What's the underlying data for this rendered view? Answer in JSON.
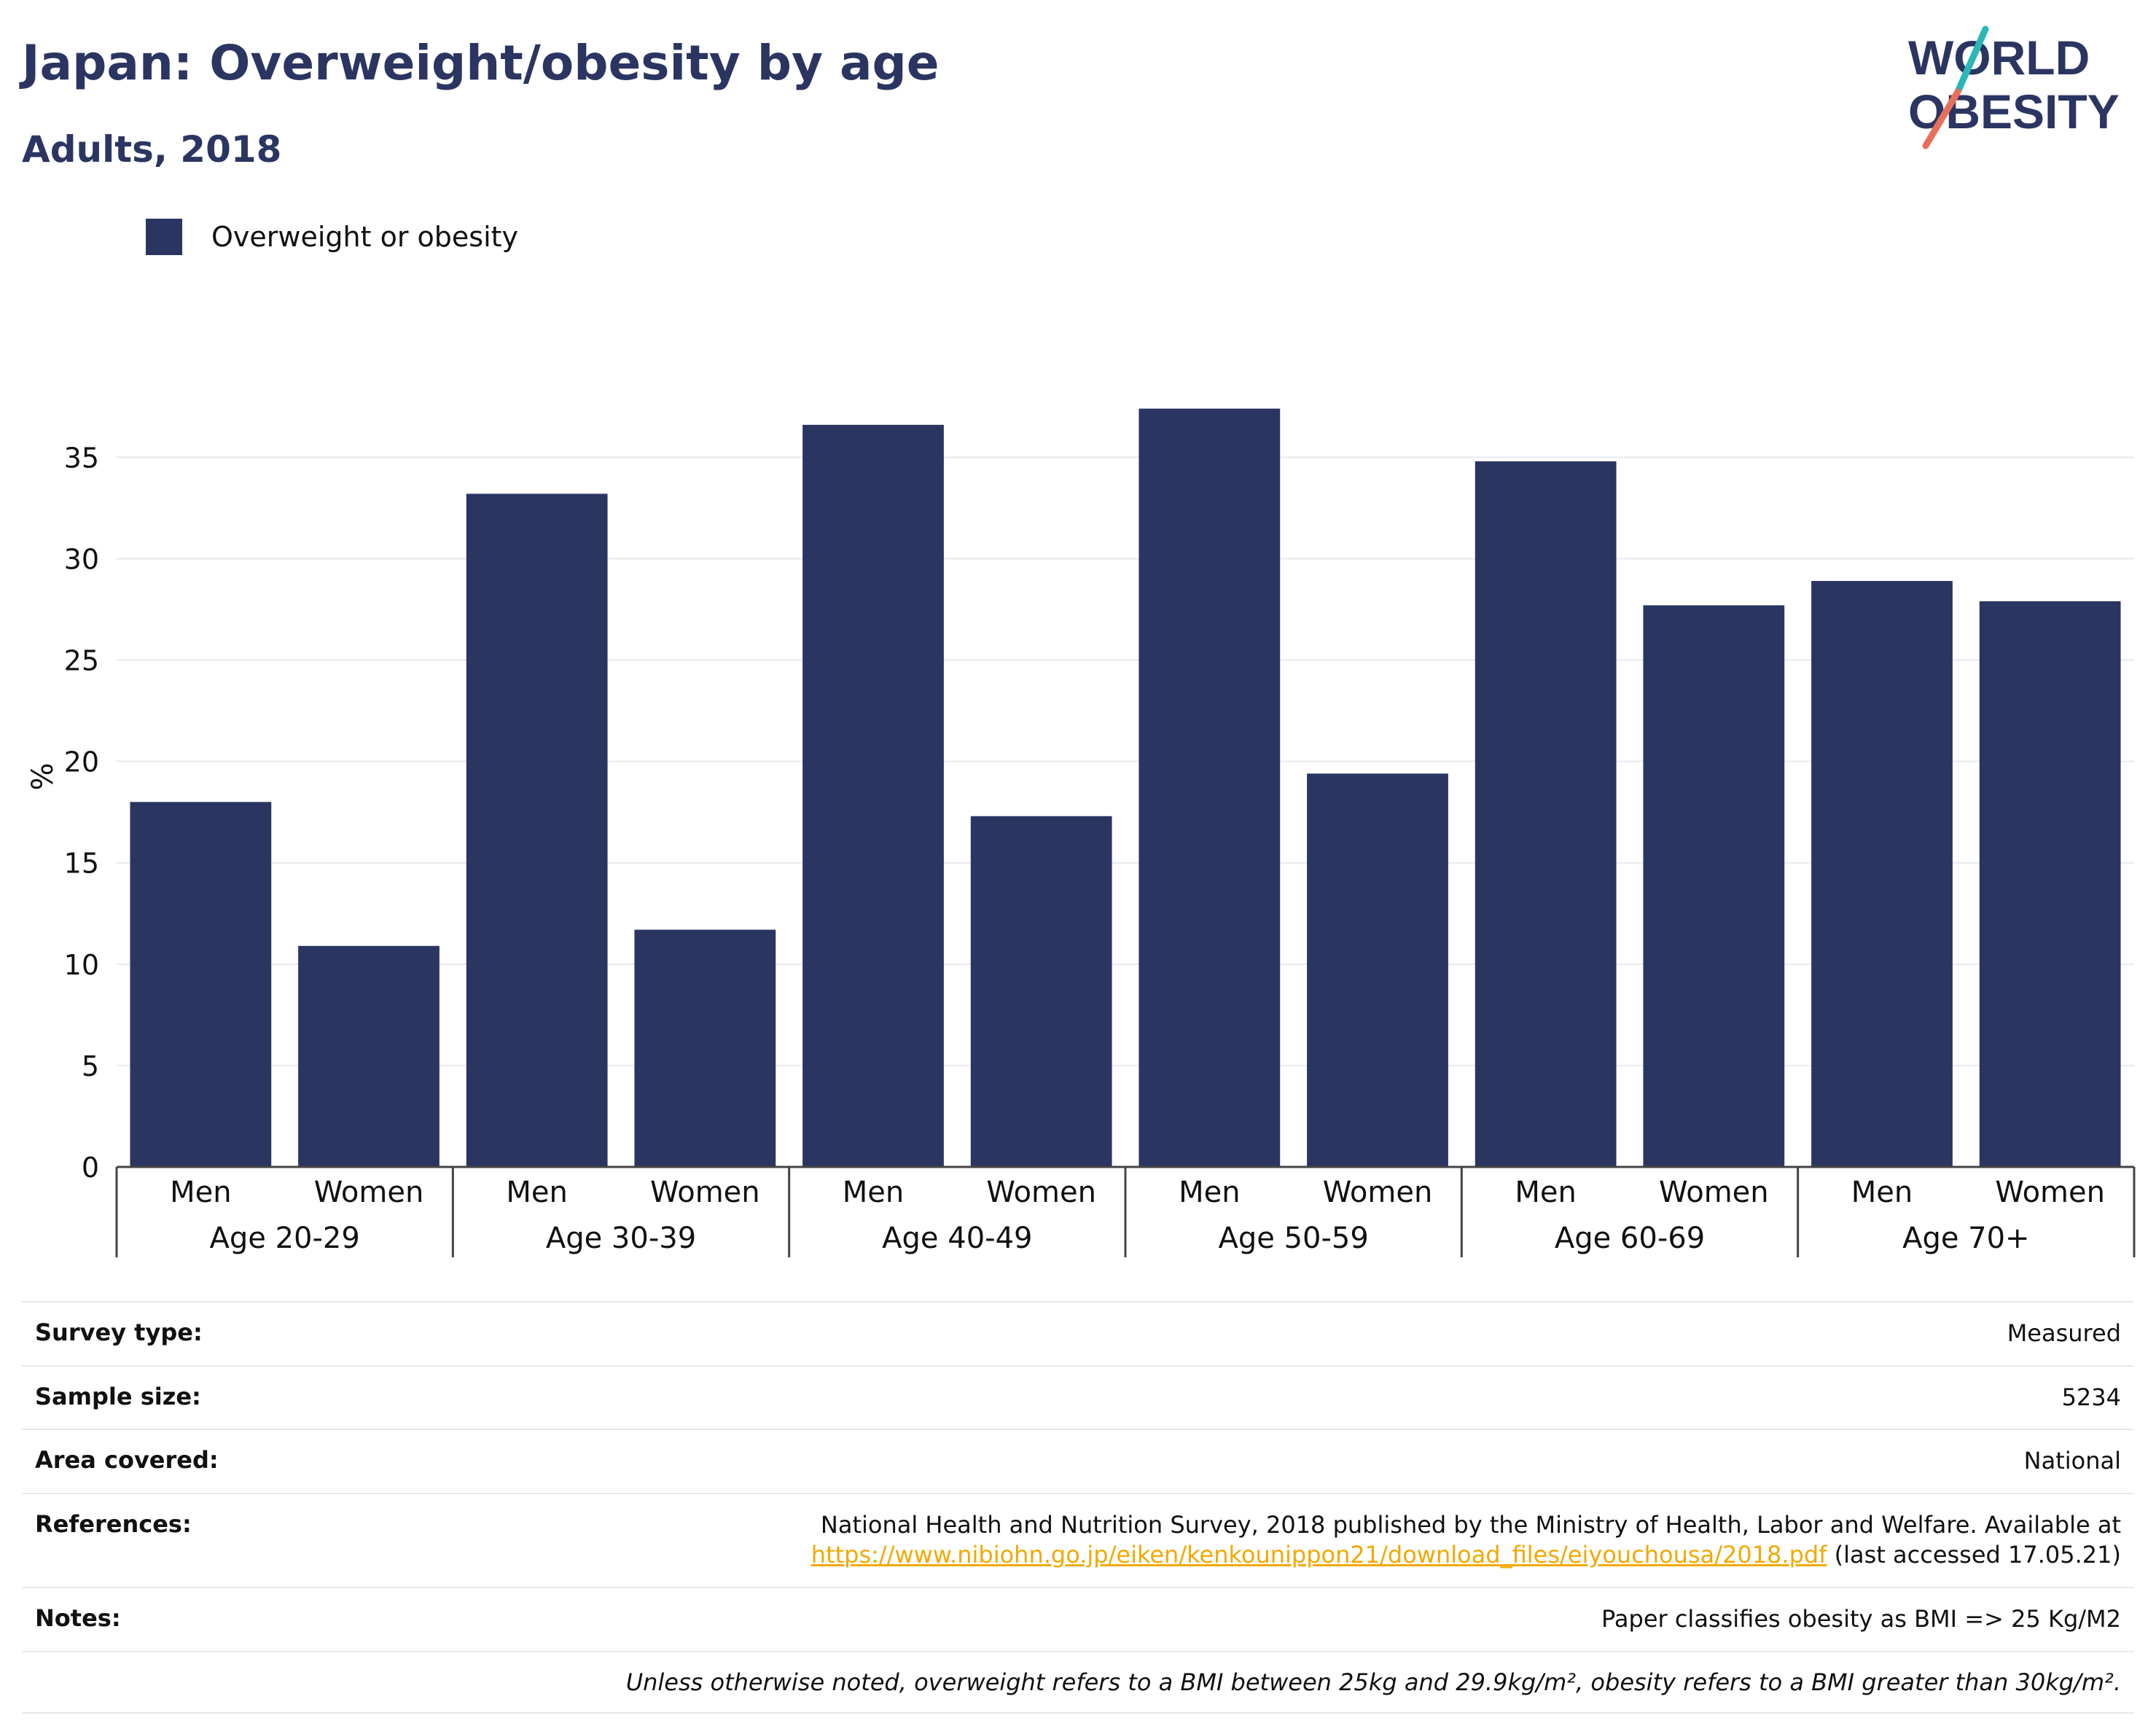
{
  "header": {
    "title": "Japan: Overweight/obesity by age",
    "subtitle": "Adults, 2018"
  },
  "logo": {
    "line1": "WORLD",
    "line2": "OBESITY",
    "colors": {
      "text": "#2b3561",
      "slash_top": "#2ab7b7",
      "slash_bottom": "#e8705b"
    }
  },
  "colors": {
    "bar": "#2b3561",
    "grid": "#e6e9ef",
    "axis": "#444444"
  },
  "chart_data": {
    "type": "bar",
    "title": "Japan: Overweight/obesity by age",
    "subtitle": "Adults, 2018",
    "ylabel": "%",
    "ylim": [
      0,
      38.5
    ],
    "yticks": [
      0,
      5,
      10,
      15,
      20,
      25,
      30,
      35
    ],
    "grid": true,
    "legend_position": "top-left",
    "groups": [
      "Age 20-29",
      "Age 30-39",
      "Age 40-49",
      "Age 50-59",
      "Age 60-69",
      "Age 70+"
    ],
    "subcategories": [
      "Men",
      "Women"
    ],
    "series": [
      {
        "name": "Overweight or obesity",
        "values": [
          18.0,
          10.9,
          33.2,
          11.7,
          36.6,
          17.3,
          37.4,
          19.4,
          34.8,
          27.7,
          28.9,
          27.9
        ]
      }
    ]
  },
  "meta": {
    "survey_type": {
      "label": "Survey type:",
      "value": "Measured"
    },
    "sample_size": {
      "label": "Sample size:",
      "value": "5234"
    },
    "area_covered": {
      "label": "Area covered:",
      "value": "National"
    },
    "references": {
      "label": "References:",
      "text": "National Health and Nutrition Survey, 2018 published by the Ministry of Health, Labor and Welfare. Available at",
      "link": "https://www.nibiohn.go.jp/eiken/kenkounippon21/download_files/eiyouchousa/2018.pdf",
      "suffix": "(last accessed 17.05.21)"
    },
    "notes": {
      "label": "Notes:",
      "value": "Paper classifies obesity as BMI => 25 Kg/M2"
    },
    "footnote": "Unless otherwise noted, overweight refers to a BMI between 25kg and 29.9kg/m², obesity refers to a BMI greater than 30kg/m²."
  }
}
